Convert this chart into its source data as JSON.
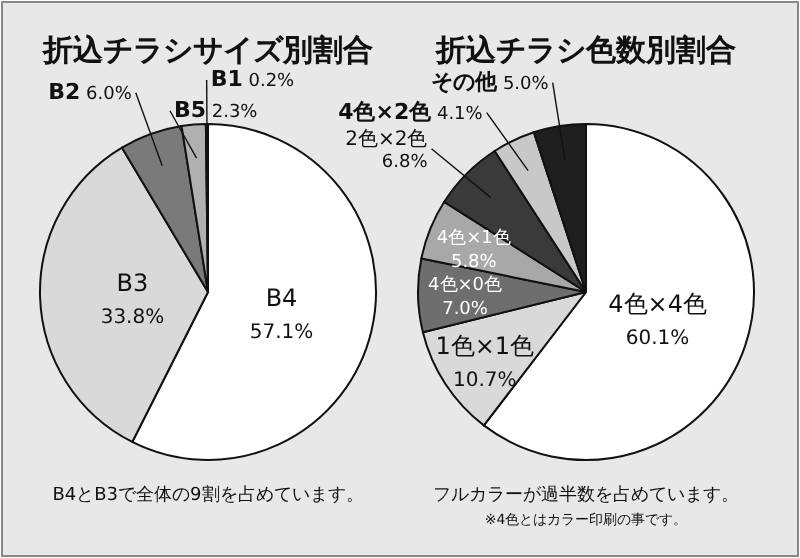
{
  "chart_data": [
    {
      "type": "pie",
      "title": "折込チラシサイズ別割合",
      "categories": [
        "B4",
        "B3",
        "B2",
        "B5",
        "B1"
      ],
      "values": [
        57.1,
        33.8,
        6.0,
        2.3,
        0.2
      ],
      "colors": [
        "#ffffff",
        "#d9d9d9",
        "#7a7a7a",
        "#b0b0b0",
        "#1a1a1a"
      ],
      "value_labels": [
        "57.1%",
        "33.8%",
        "6.0%",
        "2.3%",
        "0.2%"
      ],
      "annotations": [
        "B4とB3で全体の9割を占めています。"
      ]
    },
    {
      "type": "pie",
      "title": "折込チラシ色数別割合",
      "categories": [
        "4色×4色",
        "1色×1色",
        "4色×0色",
        "4色×1色",
        "2色×2色",
        "4色×2色",
        "その他"
      ],
      "values": [
        60.1,
        10.7,
        7.0,
        5.8,
        6.8,
        4.1,
        5.0
      ],
      "colors": [
        "#ffffff",
        "#d9d9d9",
        "#6e6e6e",
        "#a8a8a8",
        "#3a3a3a",
        "#c8c8c8",
        "#1e1e1e"
      ],
      "value_labels": [
        "60.1%",
        "10.7%",
        "7.0%",
        "5.8%",
        "6.8%",
        "4.1%",
        "5.0%"
      ],
      "annotations": [
        "フルカラーが過半数を占めています。",
        "※4色とはカラー印刷の事です。"
      ]
    }
  ]
}
